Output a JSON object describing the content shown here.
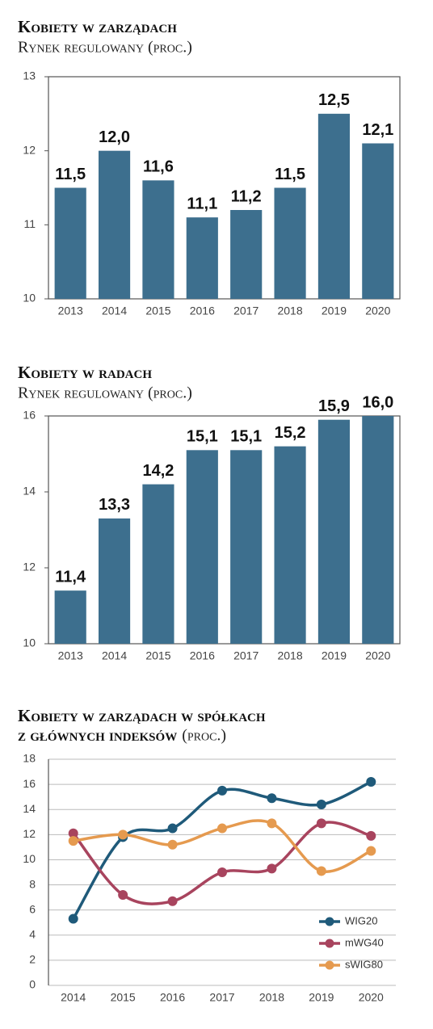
{
  "chart_data": [
    {
      "type": "bar",
      "title": "Kobiety w zarządach",
      "subtitle": "Rynek regulowany (proc.)",
      "categories": [
        "2013",
        "2014",
        "2015",
        "2016",
        "2017",
        "2018",
        "2019",
        "2020"
      ],
      "values": [
        11.5,
        12.0,
        11.6,
        11.1,
        11.2,
        11.5,
        12.5,
        12.1
      ],
      "value_labels": [
        "11,5",
        "12,0",
        "11,6",
        "11,1",
        "11,2",
        "11,5",
        "12,5",
        "12,1"
      ],
      "color": "#3d6f8e",
      "ylim": [
        10,
        13
      ],
      "yticks": [
        10,
        11,
        12,
        13
      ],
      "grid": false
    },
    {
      "type": "bar",
      "title": "Kobiety w radach",
      "subtitle": "Rynek regulowany (proc.)",
      "categories": [
        "2013",
        "2014",
        "2015",
        "2016",
        "2017",
        "2018",
        "2019",
        "2020"
      ],
      "values": [
        11.4,
        13.3,
        14.2,
        15.1,
        15.1,
        15.2,
        15.9,
        16.0
      ],
      "value_labels": [
        "11,4",
        "13,3",
        "14,2",
        "15,1",
        "15,1",
        "15,2",
        "15,9",
        "16,0"
      ],
      "color": "#3d6f8e",
      "ylim": [
        10,
        16
      ],
      "yticks": [
        10,
        12,
        14,
        16
      ],
      "grid": false
    },
    {
      "type": "line",
      "title": [
        "Kobiety w zarządach w spółkach",
        "z głównych indeksów"
      ],
      "subtitle": "(proc.)",
      "categories": [
        "2014",
        "2015",
        "2016",
        "2017",
        "2018",
        "2019",
        "2020"
      ],
      "series": [
        {
          "name": "WIG20",
          "color": "#1f5a7a",
          "values": [
            5.3,
            11.8,
            12.5,
            15.5,
            14.9,
            14.4,
            16.2
          ]
        },
        {
          "name": "mWG40",
          "color": "#a8445e",
          "values": [
            12.1,
            7.2,
            6.7,
            9.0,
            9.3,
            12.9,
            11.9
          ]
        },
        {
          "name": "sWIG80",
          "color": "#e59a4f",
          "values": [
            11.5,
            12.0,
            11.2,
            12.5,
            12.9,
            9.1,
            10.7
          ]
        }
      ],
      "ylim": [
        0,
        18
      ],
      "yticks": [
        0,
        2,
        4,
        6,
        8,
        10,
        12,
        14,
        16,
        18
      ],
      "grid": true,
      "legend": "lower right"
    }
  ]
}
